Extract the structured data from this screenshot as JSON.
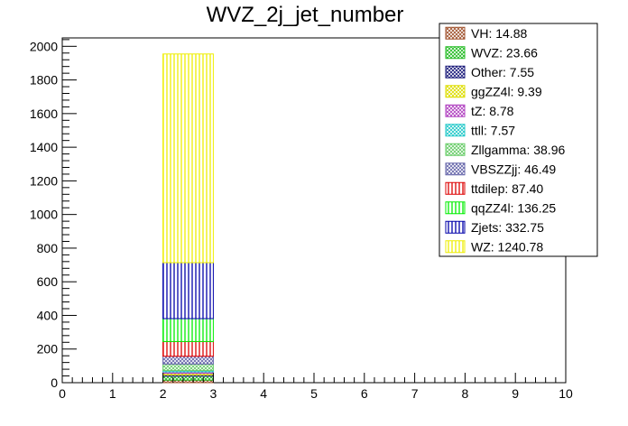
{
  "chart_data": {
    "type": "bar",
    "stacked": true,
    "title": "WVZ_2j_jet_number",
    "xlabel": "",
    "ylabel": "",
    "xlim": [
      0,
      10
    ],
    "ylim": [
      0,
      2050
    ],
    "x_ticks": [
      "0",
      "1",
      "2",
      "3",
      "4",
      "5",
      "6",
      "7",
      "8",
      "9",
      "10"
    ],
    "y_ticks": [
      "0",
      "200",
      "400",
      "600",
      "800",
      "1000",
      "1200",
      "1400",
      "1600",
      "1800",
      "2000"
    ],
    "bin": [
      2,
      3
    ],
    "legend_position": "top-right",
    "series": [
      {
        "name": "VH",
        "label": "VH: 14.88",
        "value": 14.88,
        "color": "#a0522d",
        "hatch": "cross"
      },
      {
        "name": "WVZ",
        "label": "WVZ: 23.66",
        "value": 23.66,
        "color": "#22bb22",
        "hatch": "cross"
      },
      {
        "name": "Other",
        "label": "Other: 7.55",
        "value": 7.55,
        "color": "#1a1a7a",
        "hatch": "cross"
      },
      {
        "name": "ggZZ4l",
        "label": "ggZZ4l: 9.39",
        "value": 9.39,
        "color": "#dddd00",
        "hatch": "cross"
      },
      {
        "name": "tZ",
        "label": "tZ: 8.78",
        "value": 8.78,
        "color": "#b040c0",
        "hatch": "cross"
      },
      {
        "name": "ttll",
        "label": "ttll: 7.57",
        "value": 7.57,
        "color": "#20c8c8",
        "hatch": "cross"
      },
      {
        "name": "Zllgamma",
        "label": "Zllgamma: 38.96",
        "value": 38.96,
        "color": "#66cc66",
        "hatch": "cross"
      },
      {
        "name": "VBSZZjj",
        "label": "VBSZZjj: 46.49",
        "value": 46.49,
        "color": "#6666aa",
        "hatch": "cross"
      },
      {
        "name": "ttdilep",
        "label": "ttdilep: 87.40",
        "value": 87.4,
        "color": "#dd0000",
        "hatch": "vertical"
      },
      {
        "name": "qqZZ4l",
        "label": "qqZZ4l: 136.25",
        "value": 136.25,
        "color": "#00ee00",
        "hatch": "vertical"
      },
      {
        "name": "Zjets",
        "label": "Zjets: 332.75",
        "value": 332.75,
        "color": "#0000aa",
        "hatch": "vertical"
      },
      {
        "name": "WZ",
        "label": "WZ: 1240.78",
        "value": 1240.78,
        "color": "#eeee00",
        "hatch": "vertical"
      }
    ]
  }
}
